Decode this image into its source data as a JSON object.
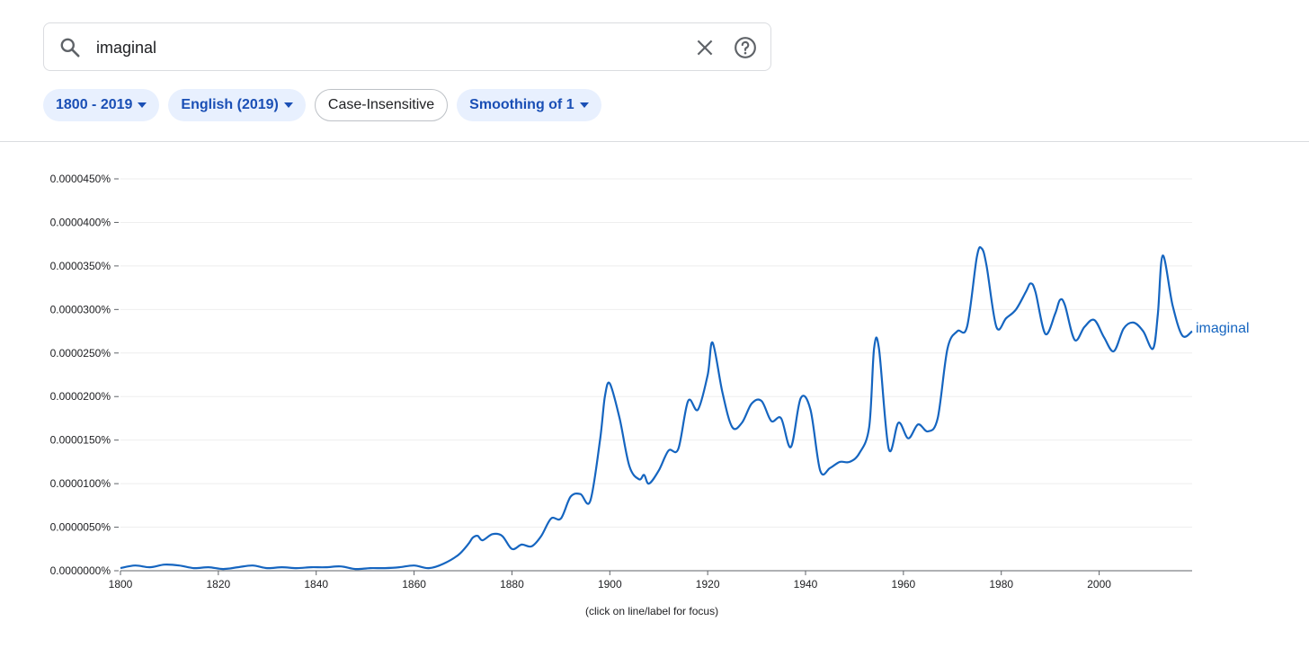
{
  "search": {
    "value": "imaginal"
  },
  "icons": {
    "search": "search-icon",
    "clear": "close-icon",
    "help": "help-circle-icon",
    "caret": "caret-down-icon"
  },
  "chips": {
    "years": "1800 - 2019",
    "corpus": "English (2019)",
    "case": "Case-Insensitive",
    "smoothing": "Smoothing of 1"
  },
  "colors": {
    "accent": "#1a4fb5",
    "line": "#1565c0",
    "chip_bg": "#e8f0fe"
  },
  "hint": "(click on line/label for focus)",
  "chart_data": {
    "type": "line",
    "x_ticks": [
      1800,
      1820,
      1840,
      1860,
      1880,
      1900,
      1920,
      1940,
      1960,
      1980,
      2000
    ],
    "x_tick_labels": [
      "1800",
      "1820",
      "1840",
      "1860",
      "1880",
      "1900",
      "1920",
      "1940",
      "1960",
      "1980",
      "2000"
    ],
    "xlim": [
      1800,
      2019
    ],
    "y_ticks": [
      0,
      5e-06,
      1e-05,
      1.5e-05,
      2e-05,
      2.5e-05,
      3e-05,
      3.5e-05,
      4e-05,
      4.5e-05
    ],
    "y_tick_labels": [
      "0.0000000%",
      "0.0000050%",
      "0.0000100%",
      "0.0000150%",
      "0.0000200%",
      "0.0000250%",
      "0.0000300%",
      "0.0000350%",
      "0.0000400%",
      "0.0000450%"
    ],
    "ylim": [
      0,
      4.5e-05
    ],
    "grid": true,
    "series": [
      {
        "name": "imaginal",
        "x": [
          1800,
          1803,
          1806,
          1809,
          1812,
          1815,
          1818,
          1821,
          1824,
          1827,
          1830,
          1833,
          1836,
          1839,
          1842,
          1845,
          1848,
          1851,
          1854,
          1857,
          1860,
          1863,
          1866,
          1869,
          1871,
          1872,
          1873,
          1874,
          1876,
          1878,
          1880,
          1882,
          1884,
          1886,
          1888,
          1890,
          1892,
          1894,
          1896,
          1898,
          1899,
          1900,
          1902,
          1904,
          1906,
          1907,
          1908,
          1910,
          1912,
          1914,
          1916,
          1918,
          1920,
          1921,
          1923,
          1925,
          1927,
          1929,
          1931,
          1933,
          1935,
          1937,
          1939,
          1941,
          1943,
          1945,
          1947,
          1949,
          1951,
          1953,
          1954,
          1955,
          1957,
          1959,
          1961,
          1963,
          1965,
          1967,
          1969,
          1971,
          1973,
          1975,
          1976,
          1977,
          1979,
          1981,
          1983,
          1985,
          1986,
          1987,
          1989,
          1991,
          1992,
          1993,
          1995,
          1997,
          1999,
          2001,
          2003,
          2005,
          2007,
          2009,
          2011,
          2012,
          2013,
          2015,
          2017,
          2019
        ],
        "y": [
          3e-07,
          6e-07,
          4e-07,
          7e-07,
          6e-07,
          3e-07,
          4e-07,
          2e-07,
          4e-07,
          6e-07,
          3e-07,
          4e-07,
          3e-07,
          4e-07,
          4e-07,
          5e-07,
          2e-07,
          3e-07,
          3e-07,
          4e-07,
          6e-07,
          3e-07,
          8e-07,
          1.8e-06,
          3e-06,
          3.8e-06,
          4e-06,
          3.5e-06,
          4.2e-06,
          4e-06,
          2.5e-06,
          3e-06,
          2.8e-06,
          4e-06,
          6e-06,
          6e-06,
          8.5e-06,
          8.8e-06,
          8e-06,
          1.5e-05,
          2e-05,
          2.15e-05,
          1.75e-05,
          1.2e-05,
          1.05e-05,
          1.1e-05,
          1e-05,
          1.15e-05,
          1.38e-05,
          1.4e-05,
          1.95e-05,
          1.85e-05,
          2.25e-05,
          2.62e-05,
          2.05e-05,
          1.65e-05,
          1.7e-05,
          1.92e-05,
          1.95e-05,
          1.72e-05,
          1.75e-05,
          1.42e-05,
          1.98e-05,
          1.85e-05,
          1.15e-05,
          1.18e-05,
          1.25e-05,
          1.25e-05,
          1.35e-05,
          1.65e-05,
          2.55e-05,
          2.55e-05,
          1.4e-05,
          1.7e-05,
          1.52e-05,
          1.68e-05,
          1.6e-05,
          1.75e-05,
          2.55e-05,
          2.75e-05,
          2.8e-05,
          3.6e-05,
          3.7e-05,
          3.5e-05,
          2.8e-05,
          2.9e-05,
          3e-05,
          3.2e-05,
          3.3e-05,
          3.2e-05,
          2.72e-05,
          2.95e-05,
          3.11e-05,
          3.05e-05,
          2.65e-05,
          2.8e-05,
          2.88e-05,
          2.68e-05,
          2.52e-05,
          2.78e-05,
          2.85e-05,
          2.75e-05,
          2.55e-05,
          2.95e-05,
          3.62e-05,
          3.05e-05,
          2.7e-05,
          2.75e-05
        ]
      }
    ]
  }
}
